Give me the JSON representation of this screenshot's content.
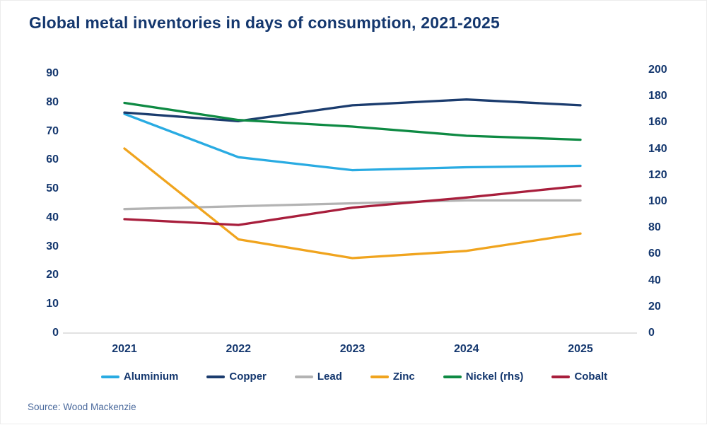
{
  "title": "Global metal inventories in days of consumption, 2021-2025",
  "source": "Source: Wood Mackenzie",
  "colors": {
    "background": "#FFFFFF",
    "title_text": "#14376E",
    "axis_text": "#14376E",
    "source_text": "#4A699C",
    "axis_line": "#D9D9D9"
  },
  "chart_data": {
    "type": "line",
    "title": "Global metal inventories in days of consumption, 2021-2025",
    "categories": [
      "2021",
      "2022",
      "2023",
      "2024",
      "2025"
    ],
    "series": [
      {
        "name": "Aluminium",
        "axis": "left",
        "color": "#29ABE2",
        "values": [
          76,
          61,
          56.5,
          57.5,
          58
        ]
      },
      {
        "name": "Copper",
        "axis": "left",
        "color": "#1B3C6E",
        "values": [
          76.5,
          73.5,
          79,
          81,
          79
        ]
      },
      {
        "name": "Lead",
        "axis": "left",
        "color": "#B3B3B3",
        "values": [
          43,
          44,
          45,
          46,
          46
        ]
      },
      {
        "name": "Zinc",
        "axis": "left",
        "color": "#F0A41E",
        "values": [
          64,
          32.5,
          26,
          28.5,
          34.5
        ]
      },
      {
        "name": "Nickel (rhs)",
        "axis": "right",
        "color": "#0E8A43",
        "values": [
          175,
          162,
          157,
          150,
          147
        ]
      },
      {
        "name": "Cobalt",
        "axis": "left",
        "color": "#A81E3C",
        "values": [
          39.5,
          37.5,
          43.5,
          47,
          51
        ]
      }
    ],
    "left_axis": {
      "label": "",
      "min": 0,
      "max": 90,
      "step": 10,
      "ticks": [
        0,
        10,
        20,
        30,
        40,
        50,
        60,
        70,
        80,
        90
      ]
    },
    "right_axis": {
      "label": "",
      "min": 0,
      "max": 200,
      "step": 20,
      "ticks": [
        0,
        20,
        40,
        60,
        80,
        100,
        120,
        140,
        160,
        180,
        200
      ]
    },
    "grid": false,
    "legend_position": "bottom"
  }
}
